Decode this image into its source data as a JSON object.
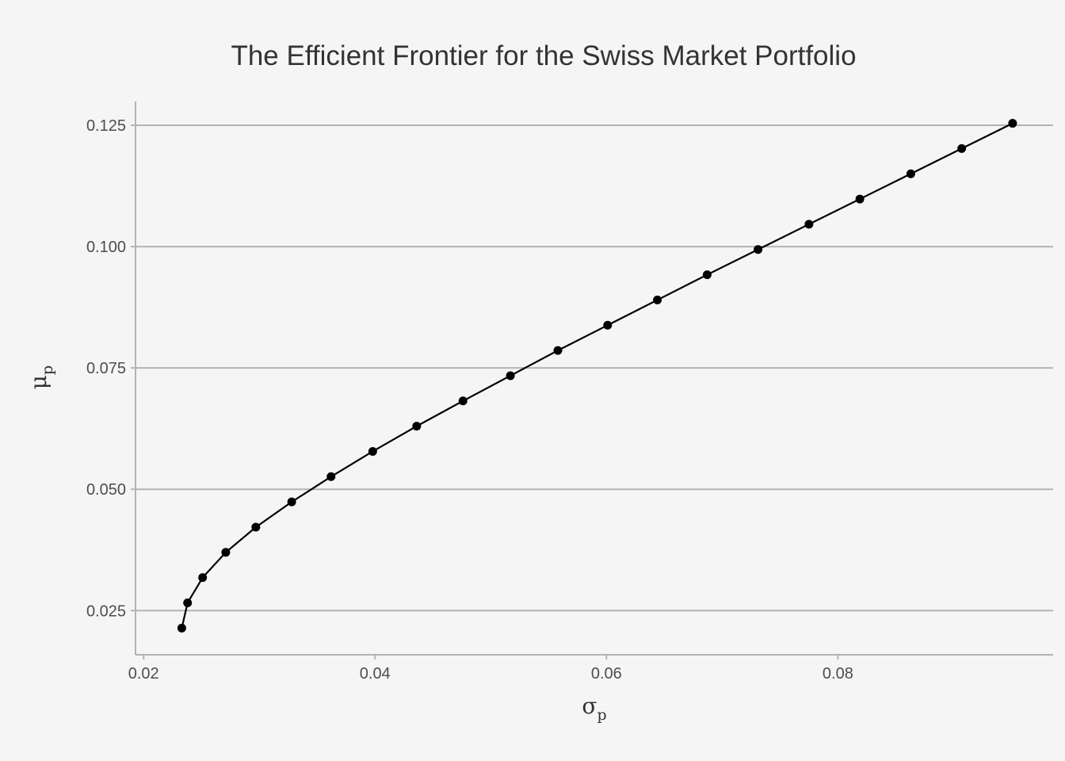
{
  "chart_data": {
    "type": "line",
    "title": "The Efficient Frontier for the Swiss Market Portfolio",
    "xlabel": {
      "base": "σ",
      "sub": "p"
    },
    "ylabel": {
      "base": "μ",
      "sub": "p"
    },
    "xlim": [
      0.0193,
      0.0986
    ],
    "ylim": [
      0.0159,
      0.1299
    ],
    "x_ticks": [
      {
        "value": 0.02,
        "label": "0.02"
      },
      {
        "value": 0.04,
        "label": "0.04"
      },
      {
        "value": 0.06,
        "label": "0.06"
      },
      {
        "value": 0.08,
        "label": "0.08"
      }
    ],
    "y_ticks": [
      {
        "value": 0.025,
        "label": "0.025"
      },
      {
        "value": 0.05,
        "label": "0.050"
      },
      {
        "value": 0.075,
        "label": "0.075"
      },
      {
        "value": 0.1,
        "label": "0.100"
      },
      {
        "value": 0.125,
        "label": "0.125"
      }
    ],
    "grid": {
      "horizontal": true,
      "vertical": false
    },
    "legend": "none",
    "series": [
      {
        "x": [
          0.0233,
          0.0238,
          0.0251,
          0.0271,
          0.0297,
          0.0328,
          0.0362,
          0.0398,
          0.0436,
          0.0476,
          0.0517,
          0.0558,
          0.0601,
          0.0644,
          0.0687,
          0.0731,
          0.0775,
          0.0819,
          0.0863,
          0.0907,
          0.0951
        ],
        "y": [
          0.0214,
          0.0266,
          0.0318,
          0.037,
          0.0422,
          0.0474,
          0.0526,
          0.0578,
          0.063,
          0.0682,
          0.0734,
          0.0786,
          0.0838,
          0.089,
          0.0942,
          0.0994,
          0.1046,
          0.1098,
          0.115,
          0.1202,
          0.1254
        ]
      }
    ],
    "colors": {
      "background": "#f5f5f5",
      "line": "#000000",
      "points": "#000000",
      "grid": "#b3b3b3",
      "axis": "#b3b3b3",
      "text": "#333333",
      "tick_text": "#4d4d4d"
    }
  }
}
